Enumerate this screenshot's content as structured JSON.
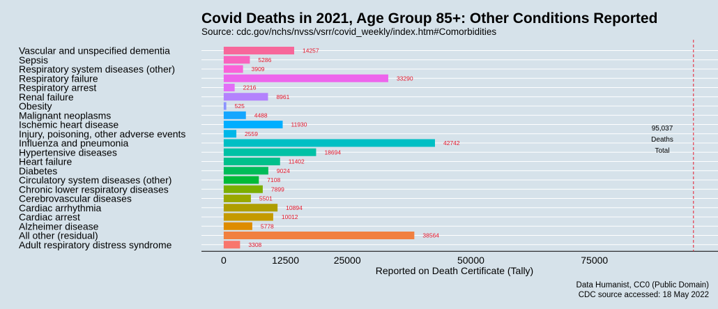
{
  "header": {
    "title": "Covid Deaths in 2021, Age Group 85+: Other Conditions Reported",
    "subtitle": "Source: cdc.gov/nchs/nvss/vsrr/covid_weekly/index.htm#Comorbidities"
  },
  "credits": {
    "line1": "Data Humanist, CC0 (Public Domain)",
    "line2": "CDC source accessed: 18 May 2022"
  },
  "chart_data": {
    "type": "bar",
    "orientation": "horizontal",
    "title": "Covid Deaths in 2021, Age Group 85+: Other Conditions Reported",
    "subtitle": "Source: cdc.gov/nchs/nvss/vsrr/covid_weekly/index.htm#Comorbidities",
    "xlabel": "Reported on Death Certificate (Tally)",
    "ylabel": "",
    "xlim": [
      -4500,
      100000
    ],
    "xticks": [
      0,
      12500,
      25000,
      50000,
      75000
    ],
    "grid": true,
    "categories": [
      "Vascular and unspecified dementia",
      "Sepsis",
      "Respiratory system diseases (other)",
      "Respiratory failure",
      "Respiratory arrest",
      "Renal failure",
      "Obesity",
      "Malignant neoplasms",
      "Ischemic heart disease",
      "Injury, poisoning, other adverse events",
      "Influenza and pneumonia",
      "Hypertensive diseases",
      "Heart failure",
      "Diabetes",
      "Circulatory system diseases (other)",
      "Chronic lower respiratory diseases",
      "Cerebrovascular diseases",
      "Cardiac arrhythmia",
      "Cardiac arrest",
      "Alzheimer disease",
      "All other (residual)",
      "Adult respiratory distress syndrome"
    ],
    "values": [
      14257,
      5286,
      3909,
      33290,
      2216,
      8961,
      525,
      4488,
      11930,
      2559,
      42742,
      18694,
      11402,
      9024,
      7108,
      7899,
      5501,
      10894,
      10012,
      5778,
      38564,
      3308
    ],
    "colors": [
      "#f7679a",
      "#f964be",
      "#fa62d8",
      "#ed65ec",
      "#e26ef7",
      "#b382fd",
      "#8b93ff",
      "#14a6ff",
      "#00aeff",
      "#00b7e8",
      "#00bfc4",
      "#00c1a5",
      "#00c08b",
      "#00bc59",
      "#00ba38",
      "#7cae00",
      "#99a800",
      "#ae9e00",
      "#c49a00",
      "#de8c00",
      "#f1803f",
      "#f8766d"
    ],
    "reference_line": {
      "value": 95037,
      "color": "#e8182c",
      "labels": [
        "95,037",
        "Deaths",
        "Total"
      ]
    }
  }
}
